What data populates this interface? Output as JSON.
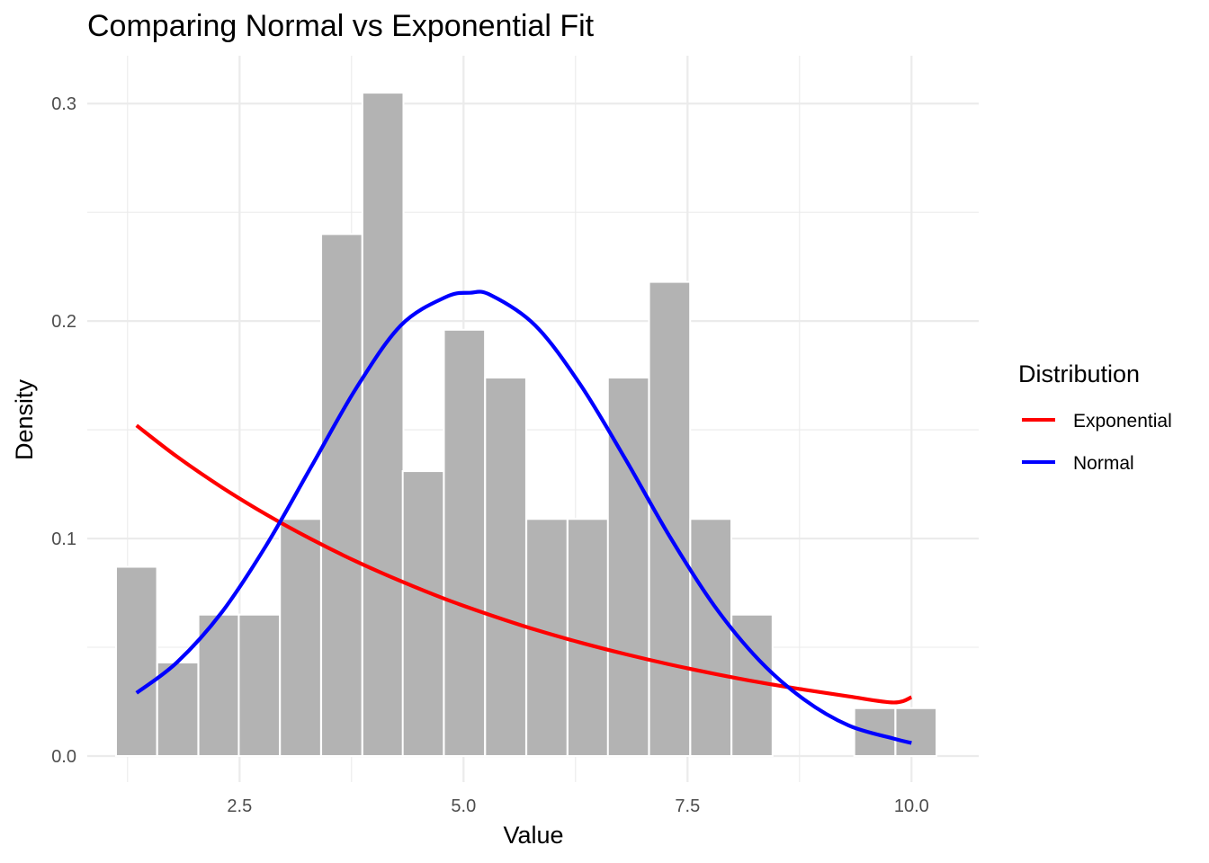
{
  "chart_data": {
    "type": "bar",
    "title": "Comparing Normal vs Exponential Fit",
    "xlabel": "Value",
    "ylabel": "Density",
    "xlim": [
      0.8,
      10.75
    ],
    "ylim": [
      -0.012,
      0.322
    ],
    "x_ticks": [
      2.5,
      5.0,
      7.5,
      10.0
    ],
    "x_tick_labels": [
      "2.5",
      "5.0",
      "7.5",
      "10.0"
    ],
    "y_ticks": [
      0.0,
      0.1,
      0.2,
      0.3
    ],
    "y_tick_labels": [
      "0.0",
      "0.1",
      "0.2",
      "0.3"
    ],
    "histogram": {
      "bin_width": 0.458,
      "bin_centers": [
        1.35,
        1.81,
        2.27,
        2.72,
        3.18,
        3.64,
        4.1,
        4.55,
        5.01,
        5.47,
        5.93,
        6.39,
        6.84,
        7.3,
        7.76,
        8.22,
        8.67,
        9.13,
        9.59,
        10.05
      ],
      "densities": [
        0.087,
        0.043,
        0.065,
        0.065,
        0.109,
        0.24,
        0.305,
        0.131,
        0.196,
        0.174,
        0.109,
        0.109,
        0.174,
        0.218,
        0.109,
        0.065,
        0.0,
        0.0,
        0.022,
        0.022
      ]
    },
    "series": [
      {
        "name": "Exponential",
        "color": "#ff0000",
        "x": [
          1.35,
          1.8,
          2.3,
          2.8,
          3.3,
          3.8,
          4.3,
          4.8,
          5.3,
          5.8,
          6.3,
          6.8,
          7.3,
          7.8,
          8.3,
          8.8,
          9.3,
          9.8,
          10.0
        ],
        "values": [
          0.152,
          0.1377,
          0.1236,
          0.111,
          0.0997,
          0.0895,
          0.0804,
          0.0721,
          0.0648,
          0.0581,
          0.0522,
          0.0469,
          0.0421,
          0.0378,
          0.0339,
          0.0305,
          0.0274,
          0.0246,
          0.027
        ]
      },
      {
        "name": "Normal",
        "color": "#0000ff",
        "x": [
          1.35,
          1.8,
          2.3,
          2.8,
          3.3,
          3.8,
          4.3,
          4.8,
          5.07,
          5.3,
          5.8,
          6.3,
          6.8,
          7.3,
          7.8,
          8.3,
          8.8,
          9.3,
          9.8,
          10.0
        ],
        "values": [
          0.029,
          0.043,
          0.066,
          0.097,
          0.133,
          0.169,
          0.198,
          0.211,
          0.213,
          0.212,
          0.198,
          0.171,
          0.137,
          0.101,
          0.069,
          0.044,
          0.026,
          0.014,
          0.008,
          0.006
        ]
      }
    ],
    "legend": {
      "title": "Distribution",
      "position": "right",
      "entries": [
        {
          "label": "Exponential",
          "color": "#ff0000"
        },
        {
          "label": "Normal",
          "color": "#0000ff"
        }
      ]
    }
  }
}
